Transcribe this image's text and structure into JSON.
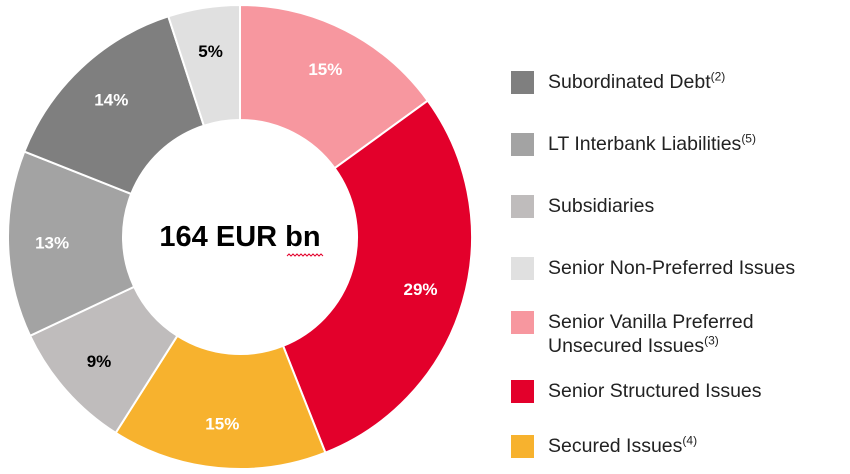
{
  "chart_data": {
    "type": "donut",
    "title": "",
    "center_label": "164 EUR bn",
    "slices": [
      {
        "label": "Senior Vanilla Preferred Unsecured Issues",
        "value": 15,
        "display": "15%",
        "color": "#f7979f",
        "label_color": "#ffffff"
      },
      {
        "label": "Senior Structured Issues",
        "value": 29,
        "display": "29%",
        "color": "#e3002b",
        "label_color": "#ffffff"
      },
      {
        "label": "Secured Issues",
        "value": 15,
        "display": "15%",
        "color": "#f7b22e",
        "label_color": "#ffffff"
      },
      {
        "label": "Subsidiaries",
        "value": 9,
        "display": "9%",
        "color": "#bfbcbc",
        "label_color": "#000000"
      },
      {
        "label": "LT Interbank Liabilities",
        "value": 13,
        "display": "13%",
        "color": "#a3a3a3",
        "label_color": "#ffffff"
      },
      {
        "label": "Subordinated Debt",
        "value": 14,
        "display": "14%",
        "color": "#7f7f7f",
        "label_color": "#ffffff"
      },
      {
        "label": "Senior Non-Preferred Issues",
        "value": 5,
        "display": "5%",
        "color": "#e0e0e0",
        "label_color": "#000000"
      }
    ],
    "legend_position": "right",
    "legend": [
      {
        "label": "Subordinated Debt",
        "sup": "(2)",
        "color": "#7f7f7f"
      },
      {
        "label": "LT Interbank Liabilities",
        "sup": "(5)",
        "color": "#a3a3a3"
      },
      {
        "label": "Subsidiaries",
        "sup": "",
        "color": "#bfbcbc"
      },
      {
        "label": "Senior Non-Preferred Issues",
        "sup": "",
        "color": "#e0e0e0"
      },
      {
        "label": "Senior Vanilla Preferred\nUnsecured Issues",
        "sup": "(3)",
        "color": "#f7979f"
      },
      {
        "label": "Senior Structured Issues",
        "sup": "",
        "color": "#e3002b"
      },
      {
        "label": "Secured Issues",
        "sup": "(4)",
        "color": "#f7b22e"
      }
    ]
  }
}
